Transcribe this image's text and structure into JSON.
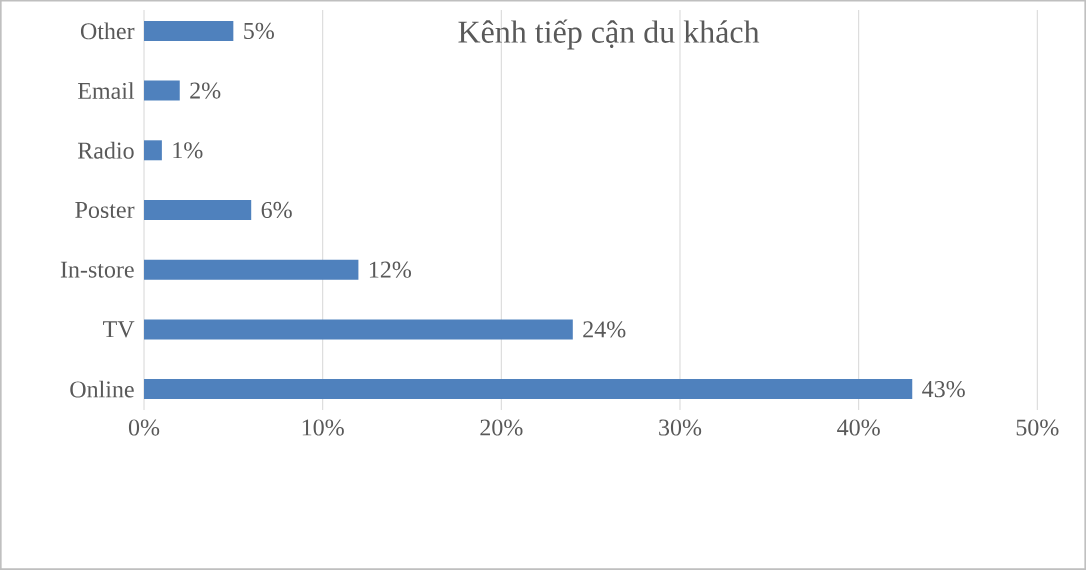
{
  "chart_data": {
    "type": "bar",
    "orientation": "horizontal",
    "title": "Kênh tiếp cận du khách",
    "categories": [
      "Other",
      "Email",
      "Radio",
      "Poster",
      "In-store",
      "TV",
      "Online"
    ],
    "values": [
      5,
      2,
      1,
      6,
      12,
      24,
      43
    ],
    "value_labels": [
      "5%",
      "2%",
      "1%",
      "6%",
      "12%",
      "24%",
      "43%"
    ],
    "color": "#4f81bd",
    "xlim": [
      0,
      50
    ],
    "xticks": [
      {
        "value": 0,
        "label": "0%"
      },
      {
        "value": 10,
        "label": "10%"
      },
      {
        "value": 20,
        "label": "20%"
      },
      {
        "value": 30,
        "label": "30%"
      },
      {
        "value": 40,
        "label": "40%"
      },
      {
        "value": 50,
        "label": "50%"
      }
    ],
    "grid": "x"
  }
}
